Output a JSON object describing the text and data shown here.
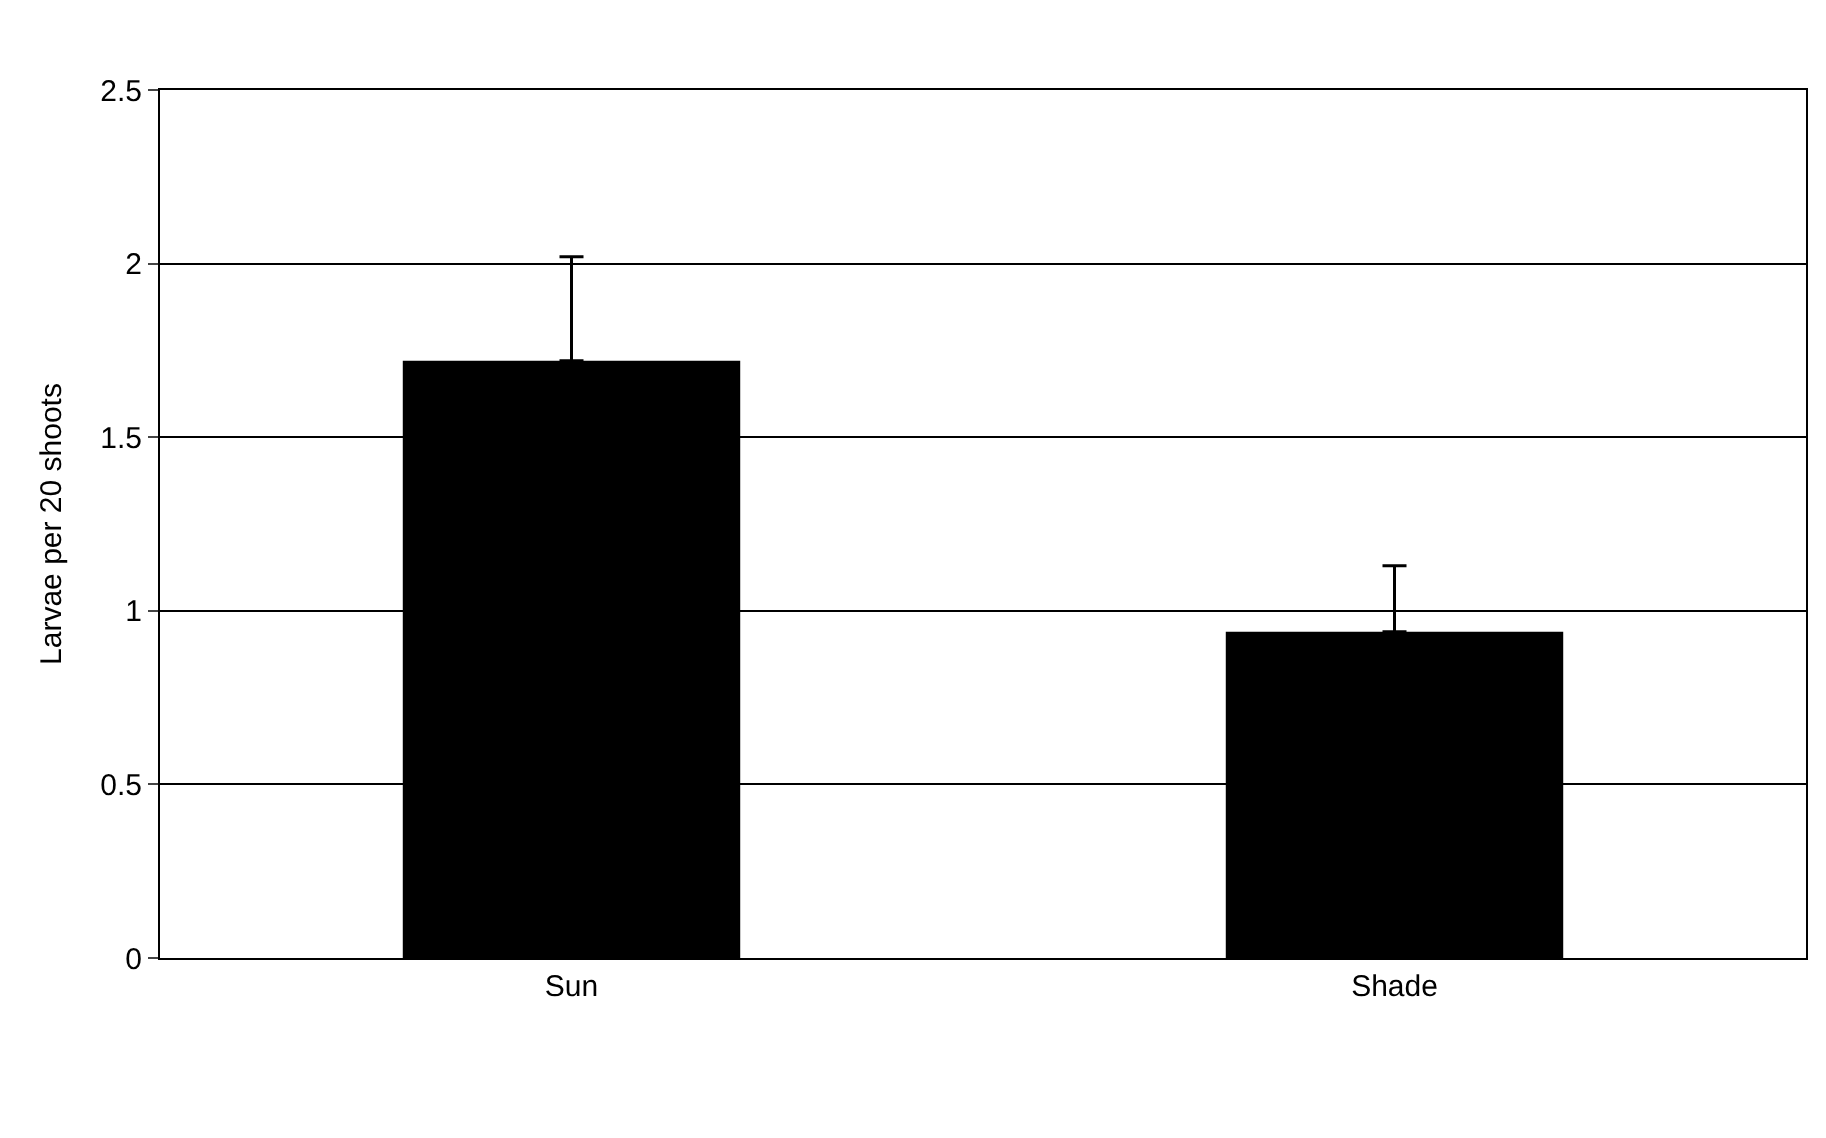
{
  "chart_data": {
    "type": "bar",
    "ylabel": "Larvae per 20 shoots",
    "categories": [
      "Sun",
      "Shade"
    ],
    "values": [
      1.72,
      0.94
    ],
    "errors": [
      [
        1.72,
        2.02
      ],
      [
        0.94,
        1.13
      ]
    ],
    "color": "#000000",
    "ylim": [
      0,
      2.5
    ],
    "yticks": [
      0,
      0.5,
      1,
      1.5,
      2,
      2.5
    ],
    "grid": "y"
  }
}
